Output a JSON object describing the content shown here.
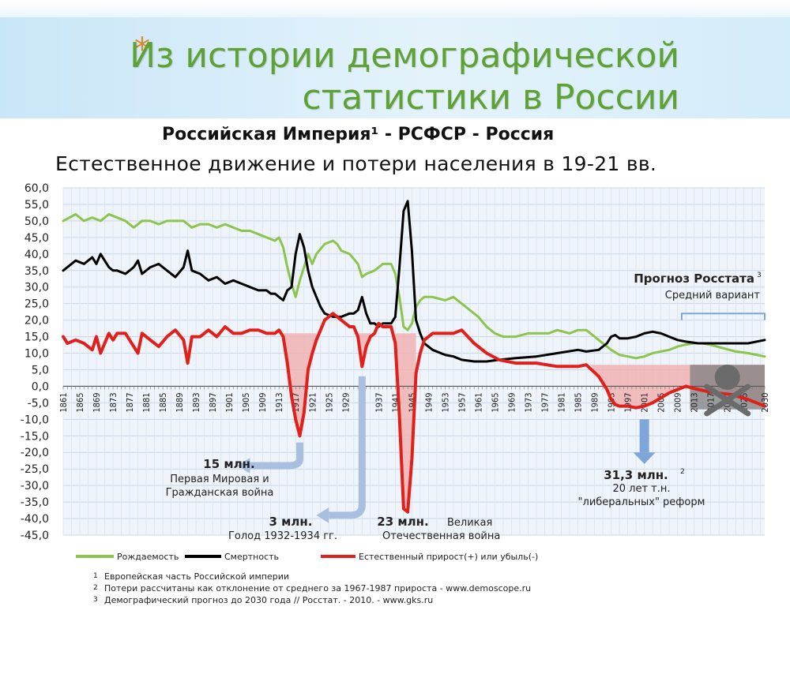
{
  "header": {
    "star": "*",
    "title_line1": "Из истории демографической",
    "title_line2": "статистики в России",
    "subtitle1": "Российская Империя¹ - РСФСР - Россия",
    "subtitle2": "Естественное движение и потери населения в 19-21 вв."
  },
  "colors": {
    "birth": "#8dc44e",
    "death": "#000000",
    "natural": "#e0201a",
    "loss_fill": "#f0b2b2",
    "forecast_fill": "#7f7f7f",
    "arrow_orange": "#a8bfe0",
    "arrow_blue": "#7fa6d8",
    "title_green": "#5da233"
  },
  "chart_data": {
    "type": "line",
    "ylim": [
      -45,
      60
    ],
    "yticks": [
      "60,0",
      "55,0",
      "50,0",
      "45,0",
      "40,0",
      "35,0",
      "30,0",
      "25,0",
      "20,0",
      "15,0",
      "10,0",
      "5,0",
      "0,0",
      "-5,0",
      "-10,0",
      "-15,0",
      "-20,0",
      "-25,0",
      "-30,0",
      "-35,0",
      "-40,0",
      "-45,0"
    ],
    "xlim": [
      1861,
      2030
    ],
    "xticks": [
      "1861",
      "1865",
      "1869",
      "1873",
      "1877",
      "1881",
      "1885",
      "1889",
      "1893",
      "1897",
      "1901",
      "1905",
      "1909",
      "1913",
      "1917",
      "1921",
      "1925",
      "1929",
      "1933",
      "1937",
      "1941",
      "1945",
      "1949",
      "1953",
      "1957",
      "1961",
      "1965",
      "1969",
      "1973",
      "1977",
      "1981",
      "1985",
      "1989",
      "1993",
      "1997",
      "2001",
      "2005",
      "2009",
      "2013",
      "2017",
      "2021",
      "2025",
      "2030"
    ],
    "series": [
      {
        "name": "Рождаемость",
        "x": [
          1861,
          1864,
          1866,
          1868,
          1870,
          1872,
          1874,
          1876,
          1878,
          1880,
          1882,
          1884,
          1886,
          1888,
          1890,
          1892,
          1894,
          1896,
          1898,
          1900,
          1902,
          1904,
          1906,
          1908,
          1910,
          1912,
          1913,
          1914,
          1915,
          1916,
          1917,
          1918,
          1919,
          1920,
          1921,
          1922,
          1924,
          1926,
          1927,
          1928,
          1930,
          1932,
          1933,
          1934,
          1936,
          1938,
          1940,
          1941,
          1942,
          1943,
          1944,
          1945,
          1946,
          1947,
          1948,
          1950,
          1953,
          1955,
          1957,
          1959,
          1961,
          1963,
          1965,
          1967,
          1970,
          1973,
          1975,
          1978,
          1980,
          1983,
          1985,
          1987,
          1989,
          1990,
          1992,
          1993,
          1995,
          1997,
          1999,
          2001,
          2003,
          2005,
          2007,
          2009,
          2011,
          2013,
          2015,
          2017,
          2020,
          2023,
          2026,
          2030
        ],
        "y": [
          50,
          52,
          50,
          51,
          50,
          52,
          51,
          50,
          48,
          50,
          50,
          49,
          50,
          50,
          50,
          48,
          49,
          49,
          48,
          49,
          48,
          47,
          47,
          46,
          45,
          44,
          45,
          42,
          36,
          31,
          27,
          32,
          36,
          40,
          37,
          40,
          43,
          44,
          43,
          41,
          40,
          37,
          33,
          34,
          35,
          37,
          37,
          34,
          27,
          18,
          17,
          19,
          24,
          26,
          27,
          27,
          26,
          27,
          25,
          23,
          21,
          18,
          16,
          15,
          15,
          16,
          16,
          16,
          17,
          16,
          17,
          17,
          15,
          14,
          12,
          11,
          9.5,
          9,
          8.5,
          9,
          10,
          10.5,
          11,
          12,
          12.6,
          13,
          13,
          12.5,
          11.5,
          10.5,
          10,
          9
        ]
      },
      {
        "name": "Смертность",
        "x": [
          1861,
          1862,
          1864,
          1866,
          1868,
          1869,
          1870,
          1872,
          1873,
          1874,
          1876,
          1878,
          1879,
          1880,
          1882,
          1884,
          1886,
          1888,
          1890,
          1891,
          1892,
          1894,
          1896,
          1898,
          1900,
          1902,
          1904,
          1906,
          1908,
          1910,
          1911,
          1912,
          1913,
          1914,
          1915,
          1916,
          1917,
          1918,
          1919,
          1920,
          1921,
          1922,
          1923,
          1924,
          1926,
          1928,
          1930,
          1931,
          1932,
          1933,
          1934,
          1935,
          1936,
          1937,
          1938,
          1940,
          1941,
          1942,
          1943,
          1944,
          1945,
          1946,
          1947,
          1948,
          1950,
          1953,
          1955,
          1957,
          1960,
          1963,
          1966,
          1970,
          1975,
          1980,
          1985,
          1987,
          1990,
          1992,
          1993,
          1994,
          1995,
          1997,
          1999,
          2001,
          2003,
          2005,
          2007,
          2009,
          2011,
          2014,
          2018,
          2022,
          2026,
          2030
        ],
        "y": [
          35,
          36,
          38,
          37,
          39,
          37,
          40,
          36,
          35,
          35,
          34,
          36,
          38,
          34,
          36,
          37,
          35,
          33,
          36,
          41,
          35,
          34,
          32,
          33,
          31,
          32,
          31,
          30,
          29,
          29,
          28,
          28,
          27,
          26,
          29,
          30,
          40,
          46,
          42,
          35,
          30,
          27,
          24,
          22,
          21,
          21,
          22,
          22,
          23,
          27,
          22,
          19,
          19,
          18,
          19,
          19,
          21,
          36,
          53,
          56,
          41,
          20,
          16,
          13,
          11,
          9.5,
          9,
          8,
          7.5,
          7.5,
          8,
          8.5,
          9,
          10,
          11,
          10.5,
          11,
          13,
          15,
          15.5,
          14.5,
          14.5,
          15,
          16,
          16.5,
          16,
          15,
          14,
          13.5,
          13,
          13,
          13,
          13,
          14
        ]
      },
      {
        "name": "Естественный прирост(+) или убыль(-)",
        "x": [
          1861,
          1862,
          1864,
          1866,
          1868,
          1869,
          1870,
          1872,
          1873,
          1874,
          1876,
          1878,
          1879,
          1880,
          1882,
          1884,
          1886,
          1888,
          1890,
          1891,
          1892,
          1894,
          1896,
          1898,
          1900,
          1902,
          1904,
          1906,
          1908,
          1910,
          1912,
          1913,
          1914,
          1915,
          1916,
          1917,
          1918,
          1919,
          1920,
          1921,
          1922,
          1924,
          1926,
          1928,
          1930,
          1931,
          1932,
          1933,
          1934,
          1935,
          1936,
          1937,
          1938,
          1939,
          1940,
          1941,
          1942,
          1943,
          1944,
          1945,
          1946,
          1947,
          1948,
          1950,
          1953,
          1955,
          1957,
          1960,
          1963,
          1966,
          1970,
          1975,
          1980,
          1985,
          1987,
          1990,
          1991,
          1992,
          1993,
          1994,
          1995,
          1997,
          1999,
          2001,
          2003,
          2005,
          2007,
          2009,
          2011,
          2014,
          2018,
          2022,
          2026,
          2030
        ],
        "y": [
          15,
          13,
          14,
          13,
          11,
          15,
          10,
          16,
          14,
          16,
          16,
          12,
          10,
          16,
          14,
          12,
          15,
          17,
          14,
          7,
          15,
          15,
          17,
          15,
          18,
          16,
          16,
          17,
          17,
          16,
          16,
          17,
          15,
          7,
          -3,
          -10,
          -15,
          -8,
          5,
          10,
          14,
          20,
          22,
          20,
          18,
          18,
          15,
          6,
          12,
          15,
          16,
          19,
          18,
          18,
          18,
          13,
          -9,
          -37,
          -38,
          -22,
          4,
          10,
          14,
          16,
          16,
          16,
          17,
          13,
          10,
          8,
          7,
          7,
          6,
          6,
          6.5,
          3,
          1,
          -1,
          -4,
          -5.5,
          -6,
          -6,
          -6.5,
          -6,
          -5,
          -3.5,
          -2,
          -1,
          0,
          -1,
          -2,
          -2.5,
          -4,
          -6
        ]
      }
    ],
    "legend_placement": "bottom",
    "legend": [
      "Рождаемость",
      "Смертность",
      "Естественный прирост(+) или убыль(-)"
    ],
    "annotations": {
      "loss_ww1_value": "15 млн.",
      "loss_ww1_text1": "Первая Мировая и",
      "loss_ww1_text2": "Гражданская война",
      "loss_famine_value": "3 млн.",
      "loss_famine_text": "Голод 1932-1934 гг.",
      "loss_ww2_value": "23 млн.",
      "loss_ww2_text1": "Великая",
      "loss_ww2_text2": "Отечественная война",
      "loss_liberal_value": "31,3 млн.",
      "loss_liberal_sup": "2",
      "loss_liberal_text1": "20 лет т.н.",
      "loss_liberal_text2": "\"либеральных\" реформ",
      "forecast_title": "Прогноз Росстата",
      "forecast_sup": "3",
      "forecast_text": "Средний вариант"
    }
  },
  "footnotes": [
    {
      "num": "1",
      "text": "Европейская часть Российской империи"
    },
    {
      "num": "2",
      "text": "Потери рассчитаны как отклонение от среднего за 1967-1987 прироста - www.demoscope.ru"
    },
    {
      "num": "3",
      "text": "Демографический прогноз до 2030 года // Росстат. - 2010. - www.gks.ru"
    }
  ]
}
